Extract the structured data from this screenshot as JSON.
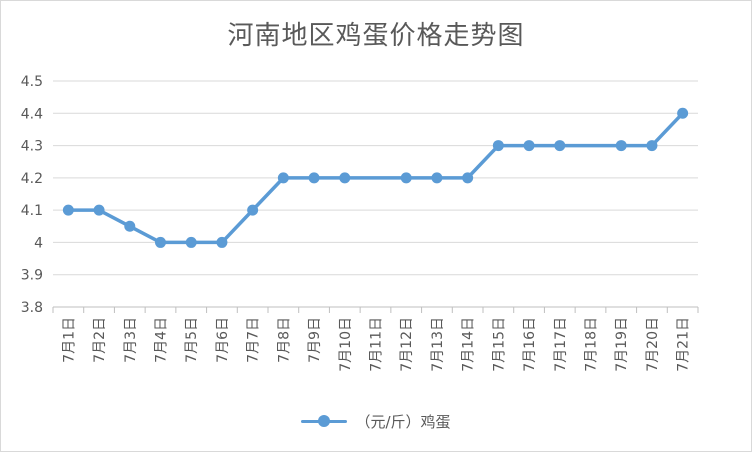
{
  "chart_data": {
    "type": "line",
    "title": "河南地区鸡蛋价格走势图",
    "xlabel": "",
    "ylabel": "",
    "ylim": [
      3.8,
      4.5
    ],
    "yticks": [
      "3.8",
      "3.9",
      "4",
      "4.1",
      "4.2",
      "4.3",
      "4.4",
      "4.5"
    ],
    "grid": true,
    "legend_position": "bottom",
    "categories": [
      "7月1日",
      "7月2日",
      "7月3日",
      "7月4日",
      "7月5日",
      "7月6日",
      "7月7日",
      "7月8日",
      "7月9日",
      "7月10日",
      "7月11日",
      "7月12日",
      "7月13日",
      "7月14日",
      "7月15日",
      "7月16日",
      "7月17日",
      "7月18日",
      "7月19日",
      "7月20日",
      "7月21日"
    ],
    "series": [
      {
        "name": "（元/斤）鸡蛋",
        "color": "#5b9bd5",
        "values": [
          4.1,
          4.1,
          4.05,
          4.0,
          4.0,
          4.0,
          4.1,
          4.2,
          4.2,
          4.2,
          null,
          4.2,
          4.2,
          4.2,
          4.3,
          4.3,
          4.3,
          null,
          4.3,
          4.3,
          4.4
        ]
      }
    ]
  }
}
